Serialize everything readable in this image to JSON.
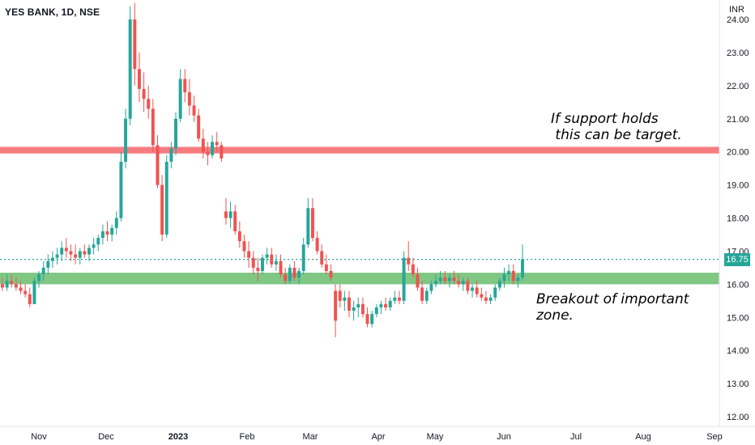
{
  "header": {
    "symbol_label": "YES BANK, 1D, NSE"
  },
  "axis": {
    "currency": "INR"
  },
  "annotations": {
    "target_note": "If support holds\n this can be target.",
    "breakout_note": "Breakout of important\nzone."
  },
  "price_tag": "16.75",
  "colors": {
    "up": "#26a69a",
    "down": "#ef5350",
    "resistance": "#f77c80",
    "support": "#81c784",
    "last_line": "#26a69a"
  },
  "chart_data": {
    "type": "candlestick",
    "ylim": [
      11.8,
      24.5
    ],
    "y_ticks": [
      "12.00",
      "13.00",
      "14.00",
      "15.00",
      "16.00",
      "17.00",
      "18.00",
      "19.00",
      "20.00",
      "21.00",
      "22.00",
      "23.00",
      "24.00"
    ],
    "x_ticks": [
      "Nov",
      "Dec",
      "2023",
      "Feb",
      "Mar",
      "Apr",
      "May",
      "Jun",
      "Jul",
      "Aug",
      "Sep"
    ],
    "zones": [
      {
        "name": "resistance",
        "low": 19.95,
        "high": 20.15
      },
      {
        "name": "support",
        "low": 16.0,
        "high": 16.35
      }
    ],
    "last_price": 16.75,
    "candles": [
      [
        16.0,
        16.2,
        15.8,
        15.9
      ],
      [
        15.9,
        16.3,
        15.8,
        16.1
      ],
      [
        16.1,
        16.3,
        15.9,
        16.0
      ],
      [
        16.0,
        16.2,
        15.8,
        15.9
      ],
      [
        15.9,
        16.1,
        15.7,
        15.8
      ],
      [
        15.8,
        16.0,
        15.6,
        15.7
      ],
      [
        15.7,
        15.9,
        15.3,
        15.4
      ],
      [
        15.4,
        16.2,
        15.4,
        16.1
      ],
      [
        16.1,
        16.4,
        15.9,
        16.3
      ],
      [
        16.3,
        16.7,
        16.1,
        16.5
      ],
      [
        16.5,
        16.9,
        16.3,
        16.7
      ],
      [
        16.7,
        17.0,
        16.5,
        16.8
      ],
      [
        16.8,
        17.1,
        16.6,
        16.9
      ],
      [
        16.9,
        17.3,
        16.7,
        17.1
      ],
      [
        17.1,
        17.4,
        16.8,
        17.0
      ],
      [
        17.0,
        17.2,
        16.7,
        16.9
      ],
      [
        16.9,
        17.2,
        16.6,
        16.8
      ],
      [
        16.8,
        17.1,
        16.6,
        17.0
      ],
      [
        17.0,
        17.2,
        16.8,
        16.9
      ],
      [
        16.9,
        17.2,
        16.7,
        17.1
      ],
      [
        17.1,
        17.4,
        16.9,
        17.2
      ],
      [
        17.2,
        17.5,
        17.0,
        17.4
      ],
      [
        17.4,
        17.8,
        17.2,
        17.6
      ],
      [
        17.6,
        17.9,
        17.3,
        17.5
      ],
      [
        17.5,
        17.8,
        17.3,
        17.7
      ],
      [
        17.7,
        18.2,
        17.5,
        18.0
      ],
      [
        18.0,
        20.0,
        17.9,
        19.7
      ],
      [
        19.7,
        21.3,
        19.5,
        21.0
      ],
      [
        21.0,
        24.4,
        20.8,
        24.0
      ],
      [
        24.0,
        24.5,
        22.0,
        22.5
      ],
      [
        22.5,
        23.0,
        21.5,
        21.9
      ],
      [
        21.9,
        22.4,
        21.2,
        21.6
      ],
      [
        21.6,
        22.0,
        21.0,
        21.3
      ],
      [
        21.3,
        21.6,
        20.0,
        20.2
      ],
      [
        20.2,
        20.5,
        18.9,
        19.0
      ],
      [
        19.0,
        19.3,
        17.3,
        17.5
      ],
      [
        17.5,
        19.9,
        17.4,
        19.7
      ],
      [
        19.7,
        20.3,
        19.5,
        20.1
      ],
      [
        20.1,
        21.2,
        19.9,
        21.0
      ],
      [
        21.0,
        22.5,
        20.9,
        22.2
      ],
      [
        22.2,
        22.5,
        21.5,
        21.8
      ],
      [
        21.8,
        22.2,
        21.1,
        21.4
      ],
      [
        21.4,
        21.7,
        20.9,
        21.1
      ],
      [
        21.1,
        21.3,
        20.3,
        20.4
      ],
      [
        20.4,
        20.7,
        19.8,
        20.0
      ],
      [
        20.0,
        20.3,
        19.6,
        19.9
      ],
      [
        19.9,
        20.5,
        19.8,
        20.3
      ],
      [
        20.3,
        20.6,
        20.0,
        20.2
      ],
      [
        20.2,
        20.3,
        19.7,
        19.8
      ],
      [
        18.2,
        18.6,
        17.8,
        18.0
      ],
      [
        18.0,
        18.5,
        17.7,
        18.2
      ],
      [
        18.2,
        18.4,
        17.5,
        17.6
      ],
      [
        17.6,
        17.9,
        17.1,
        17.3
      ],
      [
        17.3,
        17.5,
        16.8,
        17.0
      ],
      [
        17.0,
        17.3,
        16.5,
        16.8
      ],
      [
        16.8,
        17.0,
        16.3,
        16.5
      ],
      [
        16.5,
        16.8,
        16.1,
        16.4
      ],
      [
        16.4,
        16.9,
        16.3,
        16.8
      ],
      [
        16.8,
        17.1,
        16.6,
        16.9
      ],
      [
        16.9,
        17.1,
        16.5,
        16.6
      ],
      [
        16.6,
        16.9,
        16.4,
        16.7
      ],
      [
        16.7,
        16.9,
        16.2,
        16.3
      ],
      [
        16.3,
        16.5,
        16.0,
        16.1
      ],
      [
        16.1,
        16.6,
        16.0,
        16.5
      ],
      [
        16.5,
        16.7,
        16.1,
        16.2
      ],
      [
        16.2,
        16.5,
        16.0,
        16.4
      ],
      [
        16.4,
        17.4,
        16.3,
        17.2
      ],
      [
        17.2,
        18.6,
        17.1,
        18.3
      ],
      [
        18.3,
        18.6,
        17.3,
        17.4
      ],
      [
        17.4,
        17.6,
        16.9,
        17.0
      ],
      [
        17.0,
        17.2,
        16.5,
        16.6
      ],
      [
        16.6,
        16.9,
        16.3,
        16.4
      ],
      [
        16.4,
        16.6,
        16.1,
        16.2
      ],
      [
        15.8,
        16.0,
        14.4,
        14.9
      ],
      [
        15.8,
        16.0,
        15.3,
        15.5
      ],
      [
        15.5,
        15.8,
        15.2,
        15.6
      ],
      [
        15.6,
        15.8,
        15.0,
        15.2
      ],
      [
        15.2,
        15.5,
        14.9,
        15.3
      ],
      [
        15.3,
        15.6,
        15.0,
        15.4
      ],
      [
        15.4,
        15.6,
        15.0,
        15.1
      ],
      [
        15.1,
        15.3,
        14.7,
        14.8
      ],
      [
        14.8,
        15.2,
        14.7,
        15.1
      ],
      [
        15.1,
        15.4,
        15.0,
        15.3
      ],
      [
        15.3,
        15.5,
        15.1,
        15.4
      ],
      [
        15.4,
        15.6,
        15.2,
        15.3
      ],
      [
        15.3,
        15.6,
        15.2,
        15.5
      ],
      [
        15.5,
        15.8,
        15.4,
        15.6
      ],
      [
        15.6,
        15.8,
        15.4,
        15.5
      ],
      [
        15.5,
        17.0,
        15.4,
        16.8
      ],
      [
        16.8,
        17.3,
        16.4,
        16.6
      ],
      [
        16.6,
        16.8,
        16.2,
        16.3
      ],
      [
        16.3,
        16.5,
        15.8,
        15.9
      ],
      [
        15.9,
        16.1,
        15.4,
        15.5
      ],
      [
        15.5,
        15.9,
        15.4,
        15.8
      ],
      [
        15.8,
        16.1,
        15.7,
        16.0
      ],
      [
        16.0,
        16.3,
        15.9,
        16.1
      ],
      [
        16.1,
        16.4,
        16.0,
        16.2
      ],
      [
        16.2,
        16.4,
        16.0,
        16.1
      ],
      [
        16.1,
        16.3,
        15.9,
        16.2
      ],
      [
        16.2,
        16.4,
        16.0,
        16.1
      ],
      [
        16.1,
        16.3,
        15.9,
        16.0
      ],
      [
        16.0,
        16.2,
        15.8,
        16.1
      ],
      [
        16.1,
        16.2,
        15.7,
        15.8
      ],
      [
        15.8,
        16.0,
        15.6,
        15.9
      ],
      [
        15.9,
        16.1,
        15.6,
        15.7
      ],
      [
        15.7,
        15.9,
        15.5,
        15.6
      ],
      [
        15.6,
        15.8,
        15.4,
        15.5
      ],
      [
        15.5,
        15.7,
        15.4,
        15.6
      ],
      [
        15.6,
        16.0,
        15.5,
        15.9
      ],
      [
        15.9,
        16.2,
        15.8,
        16.1
      ],
      [
        16.1,
        16.5,
        15.9,
        16.3
      ],
      [
        16.3,
        16.6,
        16.1,
        16.4
      ],
      [
        16.4,
        16.6,
        16.0,
        16.1
      ],
      [
        16.1,
        16.3,
        15.9,
        16.2
      ],
      [
        16.2,
        17.2,
        16.1,
        16.75
      ]
    ]
  }
}
